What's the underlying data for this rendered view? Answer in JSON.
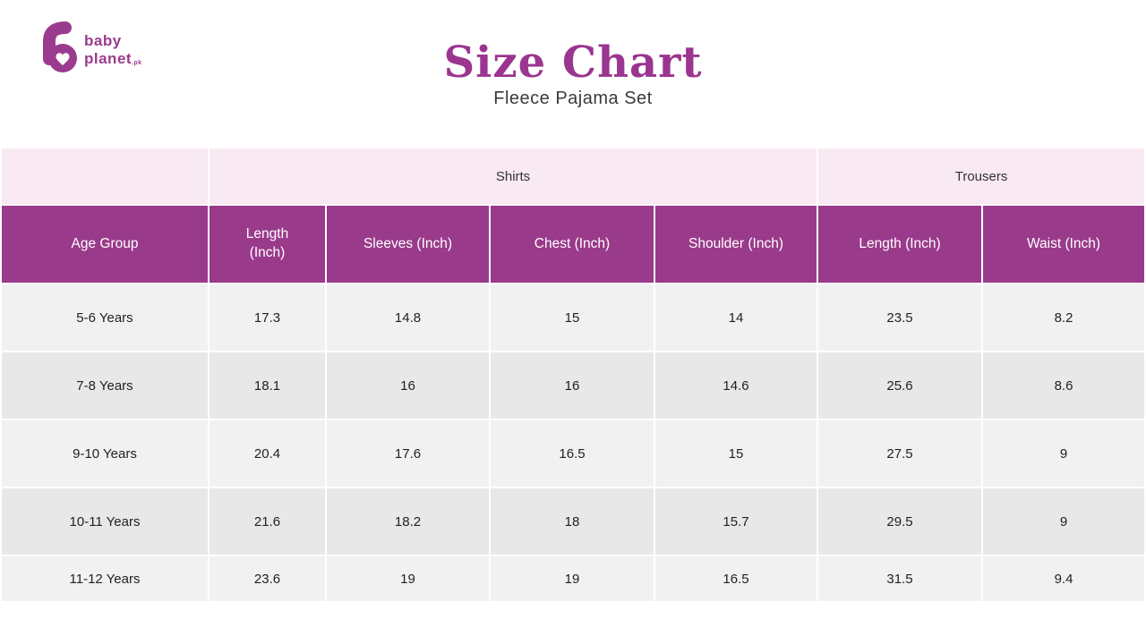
{
  "brand": {
    "name_line1": "baby",
    "name_line2": "planet",
    "name_suffix": ".pk",
    "logo_color": "#9b3b8d"
  },
  "header": {
    "title": "Size Chart",
    "subtitle": "Fleece Pajama Set"
  },
  "colors": {
    "title_purple": "#9a3590",
    "header_purple": "#9a3a8b",
    "group_pink": "#f8e9f3",
    "row_light": "#f2f1f1",
    "row_dark": "#e9e8e8",
    "text_dark": "#222222"
  },
  "chart_data": {
    "type": "table",
    "title": "Size Chart",
    "subtitle": "Fleece Pajama Set",
    "column_groups": [
      {
        "label": "",
        "span": 1
      },
      {
        "label": "Shirts",
        "span": 4
      },
      {
        "label": "Trousers",
        "span": 2
      }
    ],
    "columns": [
      "Age Group",
      "Length (Inch)",
      "Sleeves (Inch)",
      "Chest (Inch)",
      "Shoulder (Inch)",
      "Length (Inch)",
      "Waist  (Inch)"
    ],
    "rows": [
      [
        "5-6 Years",
        "17.3",
        "14.8",
        "15",
        "14",
        "23.5",
        "8.2"
      ],
      [
        "7-8 Years",
        "18.1",
        "16",
        "16",
        "14.6",
        "25.6",
        "8.6"
      ],
      [
        "9-10 Years",
        "20.4",
        "17.6",
        "16.5",
        "15",
        "27.5",
        "9"
      ],
      [
        "10-11 Years",
        "21.6",
        "18.2",
        "18",
        "15.7",
        "29.5",
        "9"
      ],
      [
        "11-12 Years",
        "23.6",
        "19",
        "19",
        "16.5",
        "31.5",
        "9.4"
      ]
    ]
  }
}
